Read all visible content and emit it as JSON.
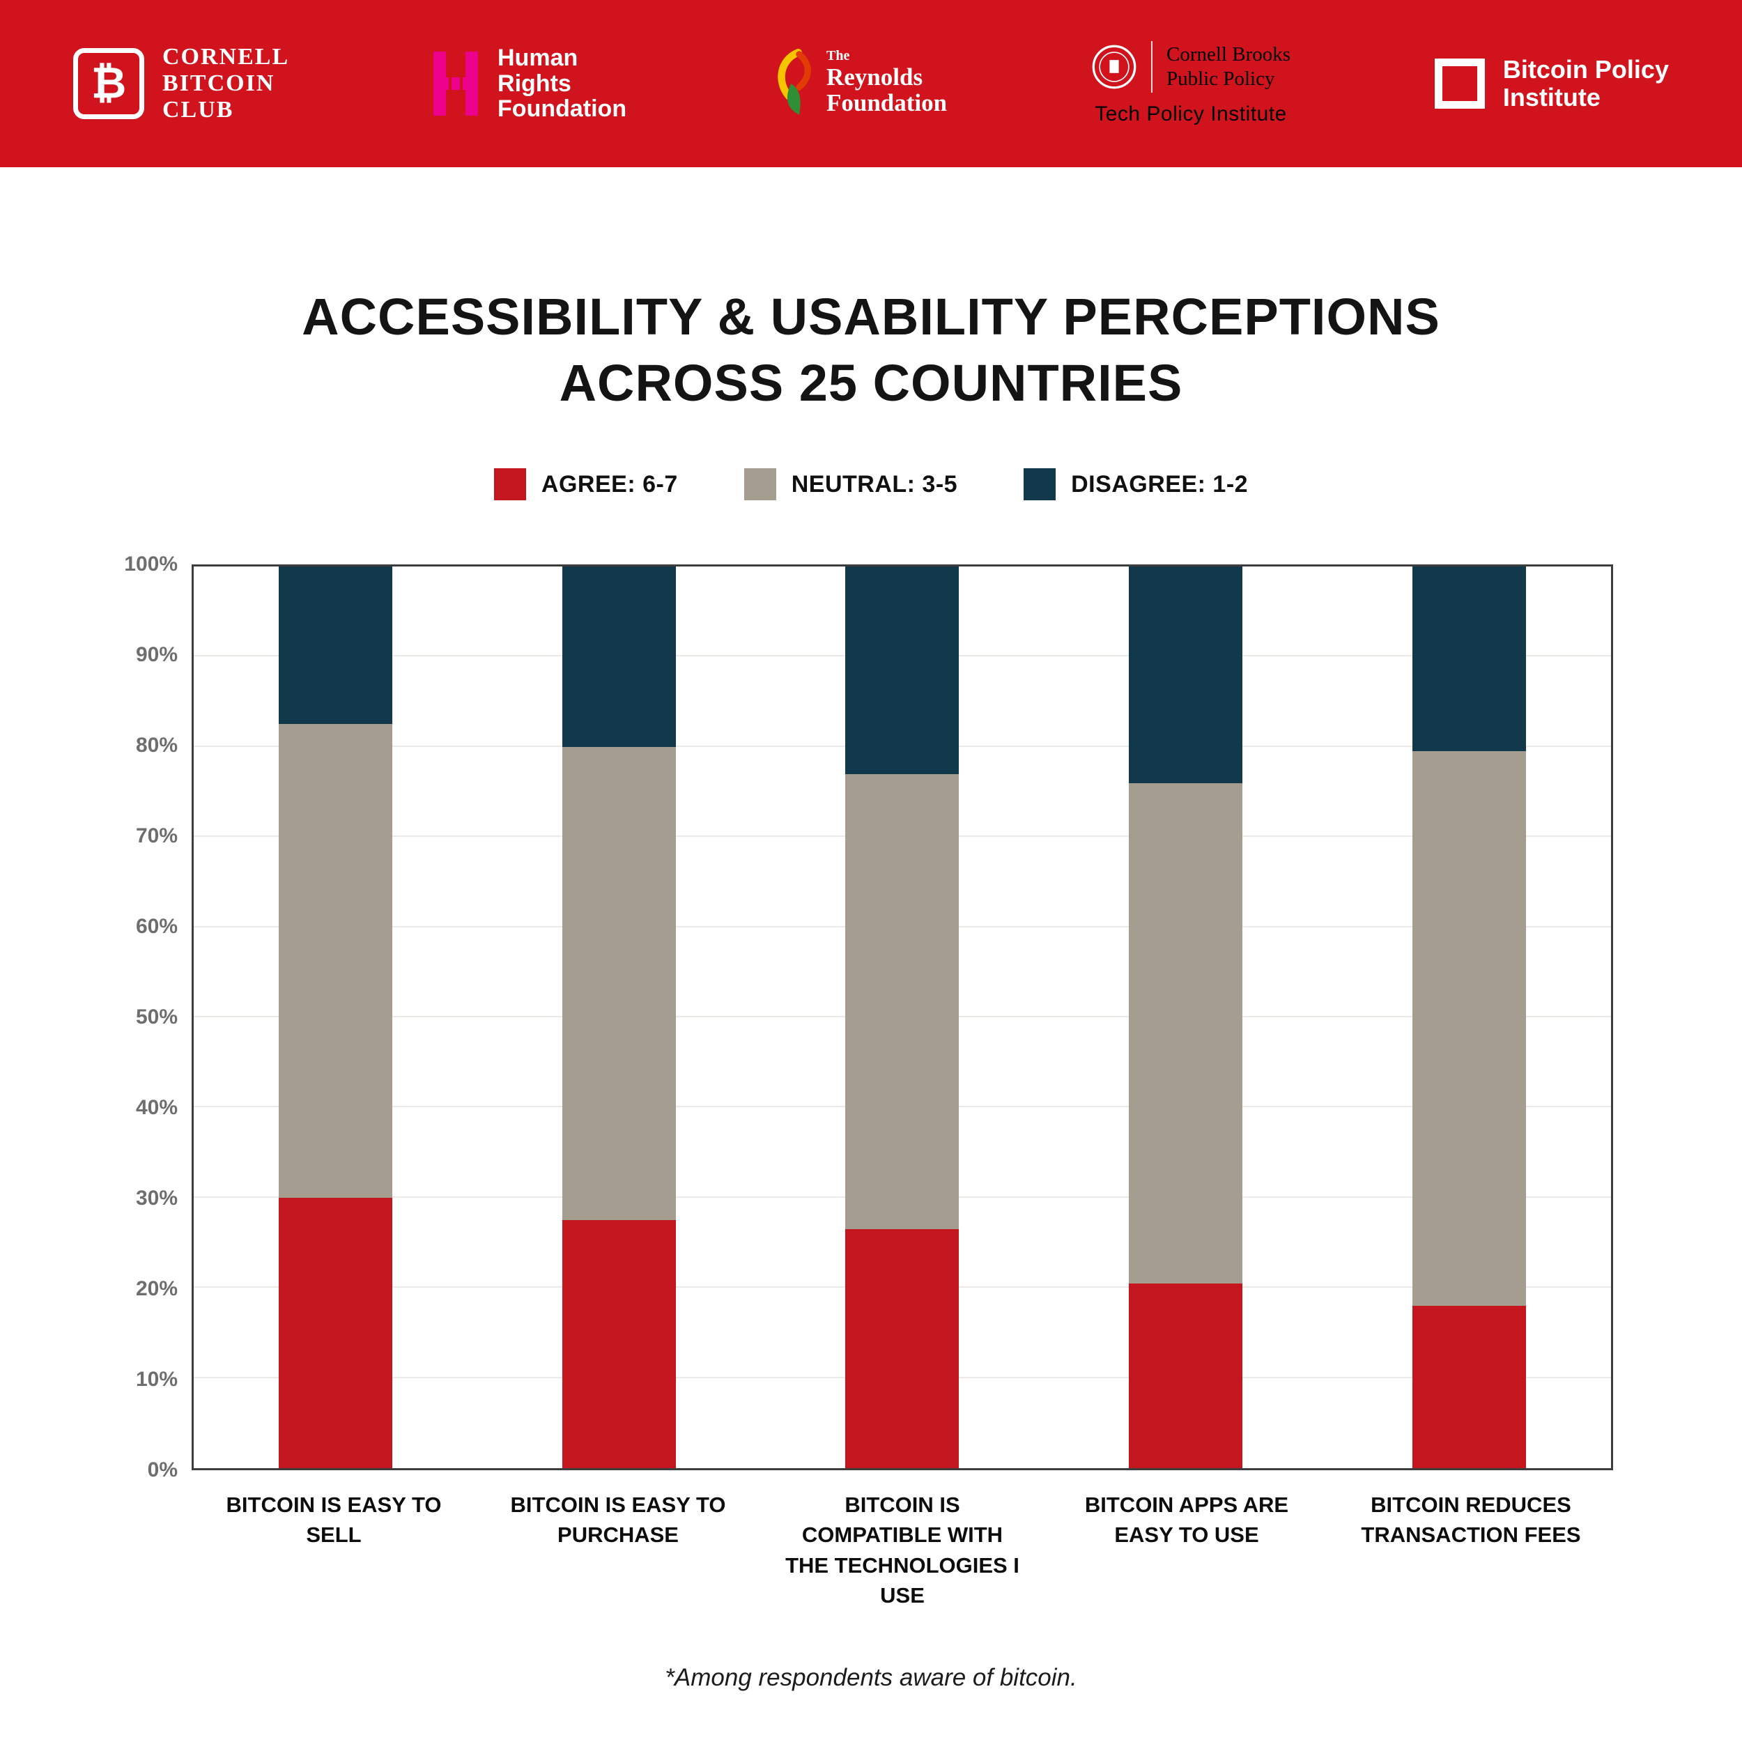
{
  "header": {
    "bg_color": "#d0131c",
    "logos": {
      "cornell_bitcoin_club": {
        "symbol": "₿",
        "line1": "CORNELL",
        "line2": "BITCOIN",
        "line3": "CLUB"
      },
      "human_rights_foundation": {
        "icon_color": "#ec008c",
        "line1": "Human",
        "line2": "Rights",
        "line3": "Foundation"
      },
      "reynolds_foundation": {
        "pre": "The",
        "line1": "Reynolds",
        "line2": "Foundation"
      },
      "cornell_brooks": {
        "line1": "Cornell Brooks",
        "line2": "Public Policy",
        "sub": "Tech Policy Institute"
      },
      "bitcoin_policy_institute": {
        "line1": "Bitcoin Policy",
        "line2": "Institute"
      }
    }
  },
  "title": {
    "line1": "ACCESSIBILITY & USABILITY PERCEPTIONS",
    "line2": "ACROSS 25 COUNTRIES"
  },
  "legend": [
    {
      "label": "AGREE: 6-7",
      "color": "#c4161f"
    },
    {
      "label": "NEUTRAL: 3-5",
      "color": "#a49d90"
    },
    {
      "label": "DISAGREE: 1-2",
      "color": "#11394b"
    }
  ],
  "footnote": "*Among respondents aware of bitcoin.",
  "chart_data": {
    "type": "bar",
    "stacked": true,
    "title": "ACCESSIBILITY & USABILITY PERCEPTIONS ACROSS 25 COUNTRIES",
    "categories": [
      "BITCOIN IS EASY TO SELL",
      "BITCOIN IS EASY TO PURCHASE",
      "BITCOIN IS COMPATIBLE WITH THE TECHNOLOGIES I USE",
      "BITCOIN APPS ARE EASY TO USE",
      "BITCOIN REDUCES TRANSACTION FEES"
    ],
    "series": [
      {
        "name": "AGREE: 6-7",
        "color": "#c4161f",
        "values": [
          30,
          27.5,
          26.5,
          20.5,
          18
        ]
      },
      {
        "name": "NEUTRAL: 3-5",
        "color": "#a49d90",
        "values": [
          52.5,
          52.5,
          50.5,
          55.5,
          61.5
        ]
      },
      {
        "name": "DISAGREE: 1-2",
        "color": "#11394b",
        "values": [
          17.5,
          20,
          23,
          24,
          20.5
        ]
      }
    ],
    "ylim": [
      0,
      100
    ],
    "ytick_step": 10,
    "yticks": [
      "0%",
      "10%",
      "20%",
      "30%",
      "40%",
      "50%",
      "60%",
      "70%",
      "80%",
      "90%",
      "100%"
    ],
    "grid": true,
    "legend_position": "top"
  }
}
